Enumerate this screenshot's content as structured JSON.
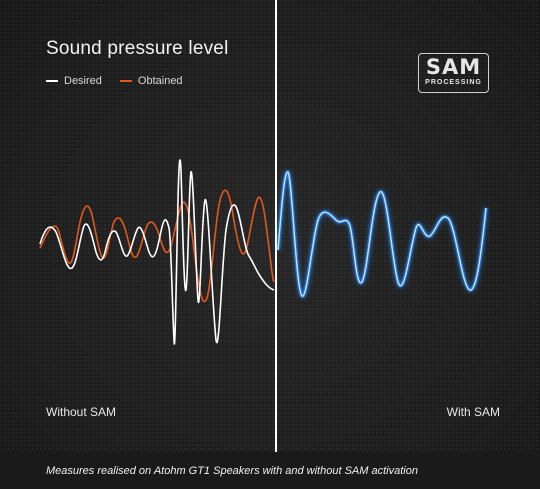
{
  "header": {
    "title": "Sound pressure level"
  },
  "legend": {
    "items": [
      {
        "label": "Desired",
        "color": "#ffffff"
      },
      {
        "label": "Obtained",
        "color": "#e0581e"
      }
    ]
  },
  "logo": {
    "main": "SAM",
    "sub": "PROCESSING"
  },
  "panels": {
    "left_label": "Without SAM",
    "right_label": "With SAM"
  },
  "footer": {
    "caption": "Measures realised on Atohm GT1 Speakers with and without SAM activation"
  },
  "colors": {
    "desired": "#ffffff",
    "obtained": "#e0581e",
    "with_sam": "#4fb6ff",
    "with_sam_glow": "#1e78ff"
  }
}
